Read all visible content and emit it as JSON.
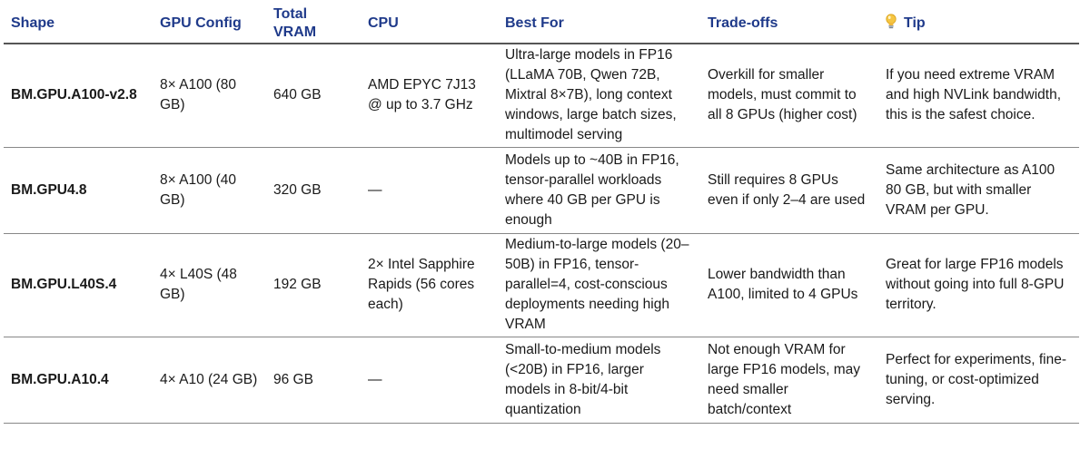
{
  "table": {
    "headers": {
      "shape": "Shape",
      "gpu_config": "GPU Config",
      "total_vram": "Total VRAM",
      "cpu": "CPU",
      "best_for": "Best For",
      "trade_offs": "Trade-offs",
      "tip": "Tip",
      "tip_icon": "lightbulb-icon"
    },
    "rows": [
      {
        "shape": "BM.GPU.A100-v2.8",
        "gpu_config": "8× A100 (80 GB)",
        "total_vram": "640 GB",
        "cpu": "AMD EPYC 7J13 @ up to 3.7 GHz",
        "best_for": "Ultra-large models in FP16 (LLaMA 70B, Qwen 72B, Mixtral 8×7B), long context windows, large batch sizes, multimodel serving",
        "trade_offs": "Overkill for smaller models, must commit to all 8 GPUs (higher cost)",
        "tip": "If you need extreme VRAM and high NVLink bandwidth, this is the safest choice."
      },
      {
        "shape": "BM.GPU4.8",
        "gpu_config": "8× A100 (40 GB)",
        "total_vram": "320 GB",
        "cpu": "—",
        "best_for": "Models up to ~40B in FP16, tensor-parallel workloads where 40 GB per GPU is enough",
        "trade_offs": "Still requires 8 GPUs even if only 2–4 are used",
        "tip": "Same architecture as A100 80 GB, but with smaller VRAM per GPU."
      },
      {
        "shape": "BM.GPU.L40S.4",
        "gpu_config": "4× L40S (48 GB)",
        "total_vram": "192 GB",
        "cpu": "2× Intel Sapphire Rapids (56 cores each)",
        "best_for": "Medium-to-large models (20–50B) in FP16, tensor-parallel=4, cost-conscious deployments needing high VRAM",
        "trade_offs": "Lower bandwidth than A100, limited to 4 GPUs",
        "tip": "Great for large FP16 models without going into full 8-GPU territory."
      },
      {
        "shape": "BM.GPU.A10.4",
        "gpu_config": "4× A10 (24 GB)",
        "total_vram": "96 GB",
        "cpu": "—",
        "best_for": "Small-to-medium models (<20B) in FP16, larger models in 8-bit/4-bit quantization",
        "trade_offs": "Not enough VRAM for large FP16 models, may need smaller batch/context",
        "tip": "Perfect for experiments, fine-tuning, or cost-optimized serving."
      }
    ]
  }
}
